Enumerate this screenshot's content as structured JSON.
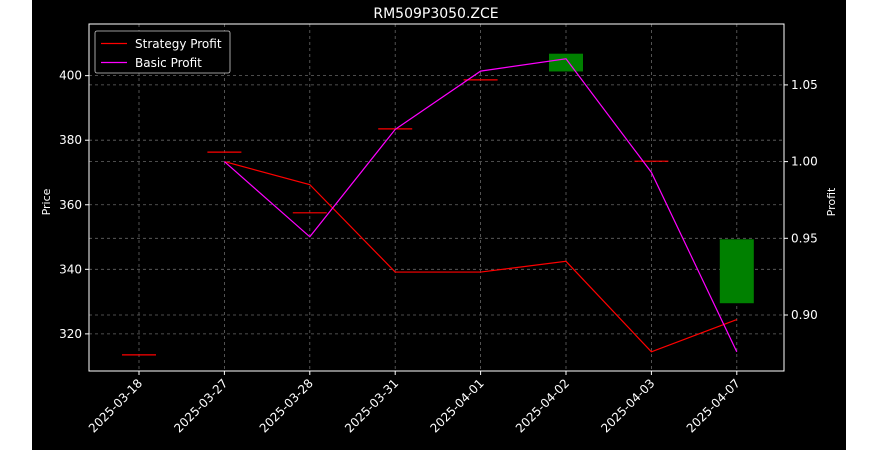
{
  "chart_data": {
    "type": "line",
    "title": "RM509P3050.ZCE",
    "x": [
      "2025-03-18",
      "2025-03-27",
      "2025-03-28",
      "2025-03-31",
      "2025-04-01",
      "2025-04-02",
      "2025-04-03",
      "2025-04-07"
    ],
    "left_axis": {
      "label": "Price",
      "ticks": [
        320,
        340,
        360,
        380,
        400
      ],
      "ylim": [
        308.5,
        416
      ]
    },
    "right_axis": {
      "label": "Profit",
      "ticks": [
        0.9,
        0.95,
        1.0,
        1.05
      ],
      "tick_labels": [
        "0.90",
        "0.95",
        "1.00",
        "1.05"
      ],
      "ylim": [
        0.8635,
        1.0897
      ]
    },
    "price_marks": [
      {
        "x": "2025-03-18",
        "y": 313.5
      },
      {
        "x": "2025-03-27",
        "y": 376.3
      },
      {
        "x": "2025-03-28",
        "y": 357.5
      },
      {
        "x": "2025-03-31",
        "y": 383.5
      },
      {
        "x": "2025-04-01",
        "y": 398.7
      },
      {
        "x": "2025-04-03",
        "y": 373.5
      }
    ],
    "candles": [
      {
        "x": "2025-04-02",
        "low": 401.3,
        "high": 406.8,
        "color": "#008000"
      },
      {
        "x": "2025-04-07",
        "low": 329.5,
        "high": 349.3,
        "color": "#008000"
      }
    ],
    "series": [
      {
        "name": "Strategy Profit",
        "color": "#ff0000",
        "axis": "right",
        "values": [
          null,
          1.0,
          0.985,
          0.928,
          0.928,
          0.935,
          0.876,
          0.897
        ]
      },
      {
        "name": "Basic Profit",
        "color": "#ff00ff",
        "axis": "right",
        "values": [
          null,
          1.0,
          0.951,
          1.021,
          1.059,
          1.067,
          0.993,
          0.876
        ]
      }
    ],
    "grid": true,
    "legend": "top-left",
    "price_mark_color": "#ff0000"
  }
}
